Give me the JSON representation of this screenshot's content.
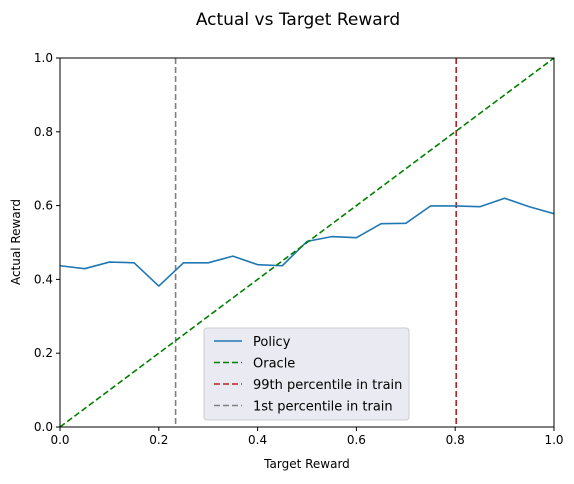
{
  "chart_data": {
    "type": "line",
    "title": "Actual vs Target Reward",
    "xlabel": "Target Reward",
    "ylabel": "Actual Reward",
    "xlim": [
      0,
      1
    ],
    "ylim": [
      0,
      1
    ],
    "xticks": [
      "0.0",
      "0.2",
      "0.4",
      "0.6",
      "0.8",
      "1.0"
    ],
    "yticks": [
      "0.0",
      "0.2",
      "0.4",
      "0.6",
      "0.8",
      "1.0"
    ],
    "grid": false,
    "legend_position": "bottom-center",
    "series": [
      {
        "name": "Policy",
        "color": "#1f77b4",
        "style": "solid",
        "x": [
          0.0,
          0.05,
          0.1,
          0.15,
          0.2,
          0.25,
          0.3,
          0.35,
          0.4,
          0.45,
          0.5,
          0.55,
          0.6,
          0.65,
          0.7,
          0.75,
          0.8,
          0.85,
          0.9,
          0.95,
          1.0
        ],
        "y": [
          0.437,
          0.429,
          0.447,
          0.445,
          0.382,
          0.445,
          0.445,
          0.463,
          0.44,
          0.437,
          0.503,
          0.516,
          0.513,
          0.551,
          0.552,
          0.599,
          0.599,
          0.597,
          0.62,
          0.597,
          0.578
        ]
      },
      {
        "name": "Oracle",
        "color": "#008000",
        "style": "dashed",
        "x": [
          0,
          1
        ],
        "y": [
          0,
          1
        ]
      }
    ],
    "vlines": [
      {
        "name": "99th percentile in train",
        "x": 0.802,
        "color": "#b22222",
        "style": "dashed"
      },
      {
        "name": "1st percentile in train",
        "x": 0.234,
        "color": "#808080",
        "style": "dashed"
      }
    ]
  }
}
